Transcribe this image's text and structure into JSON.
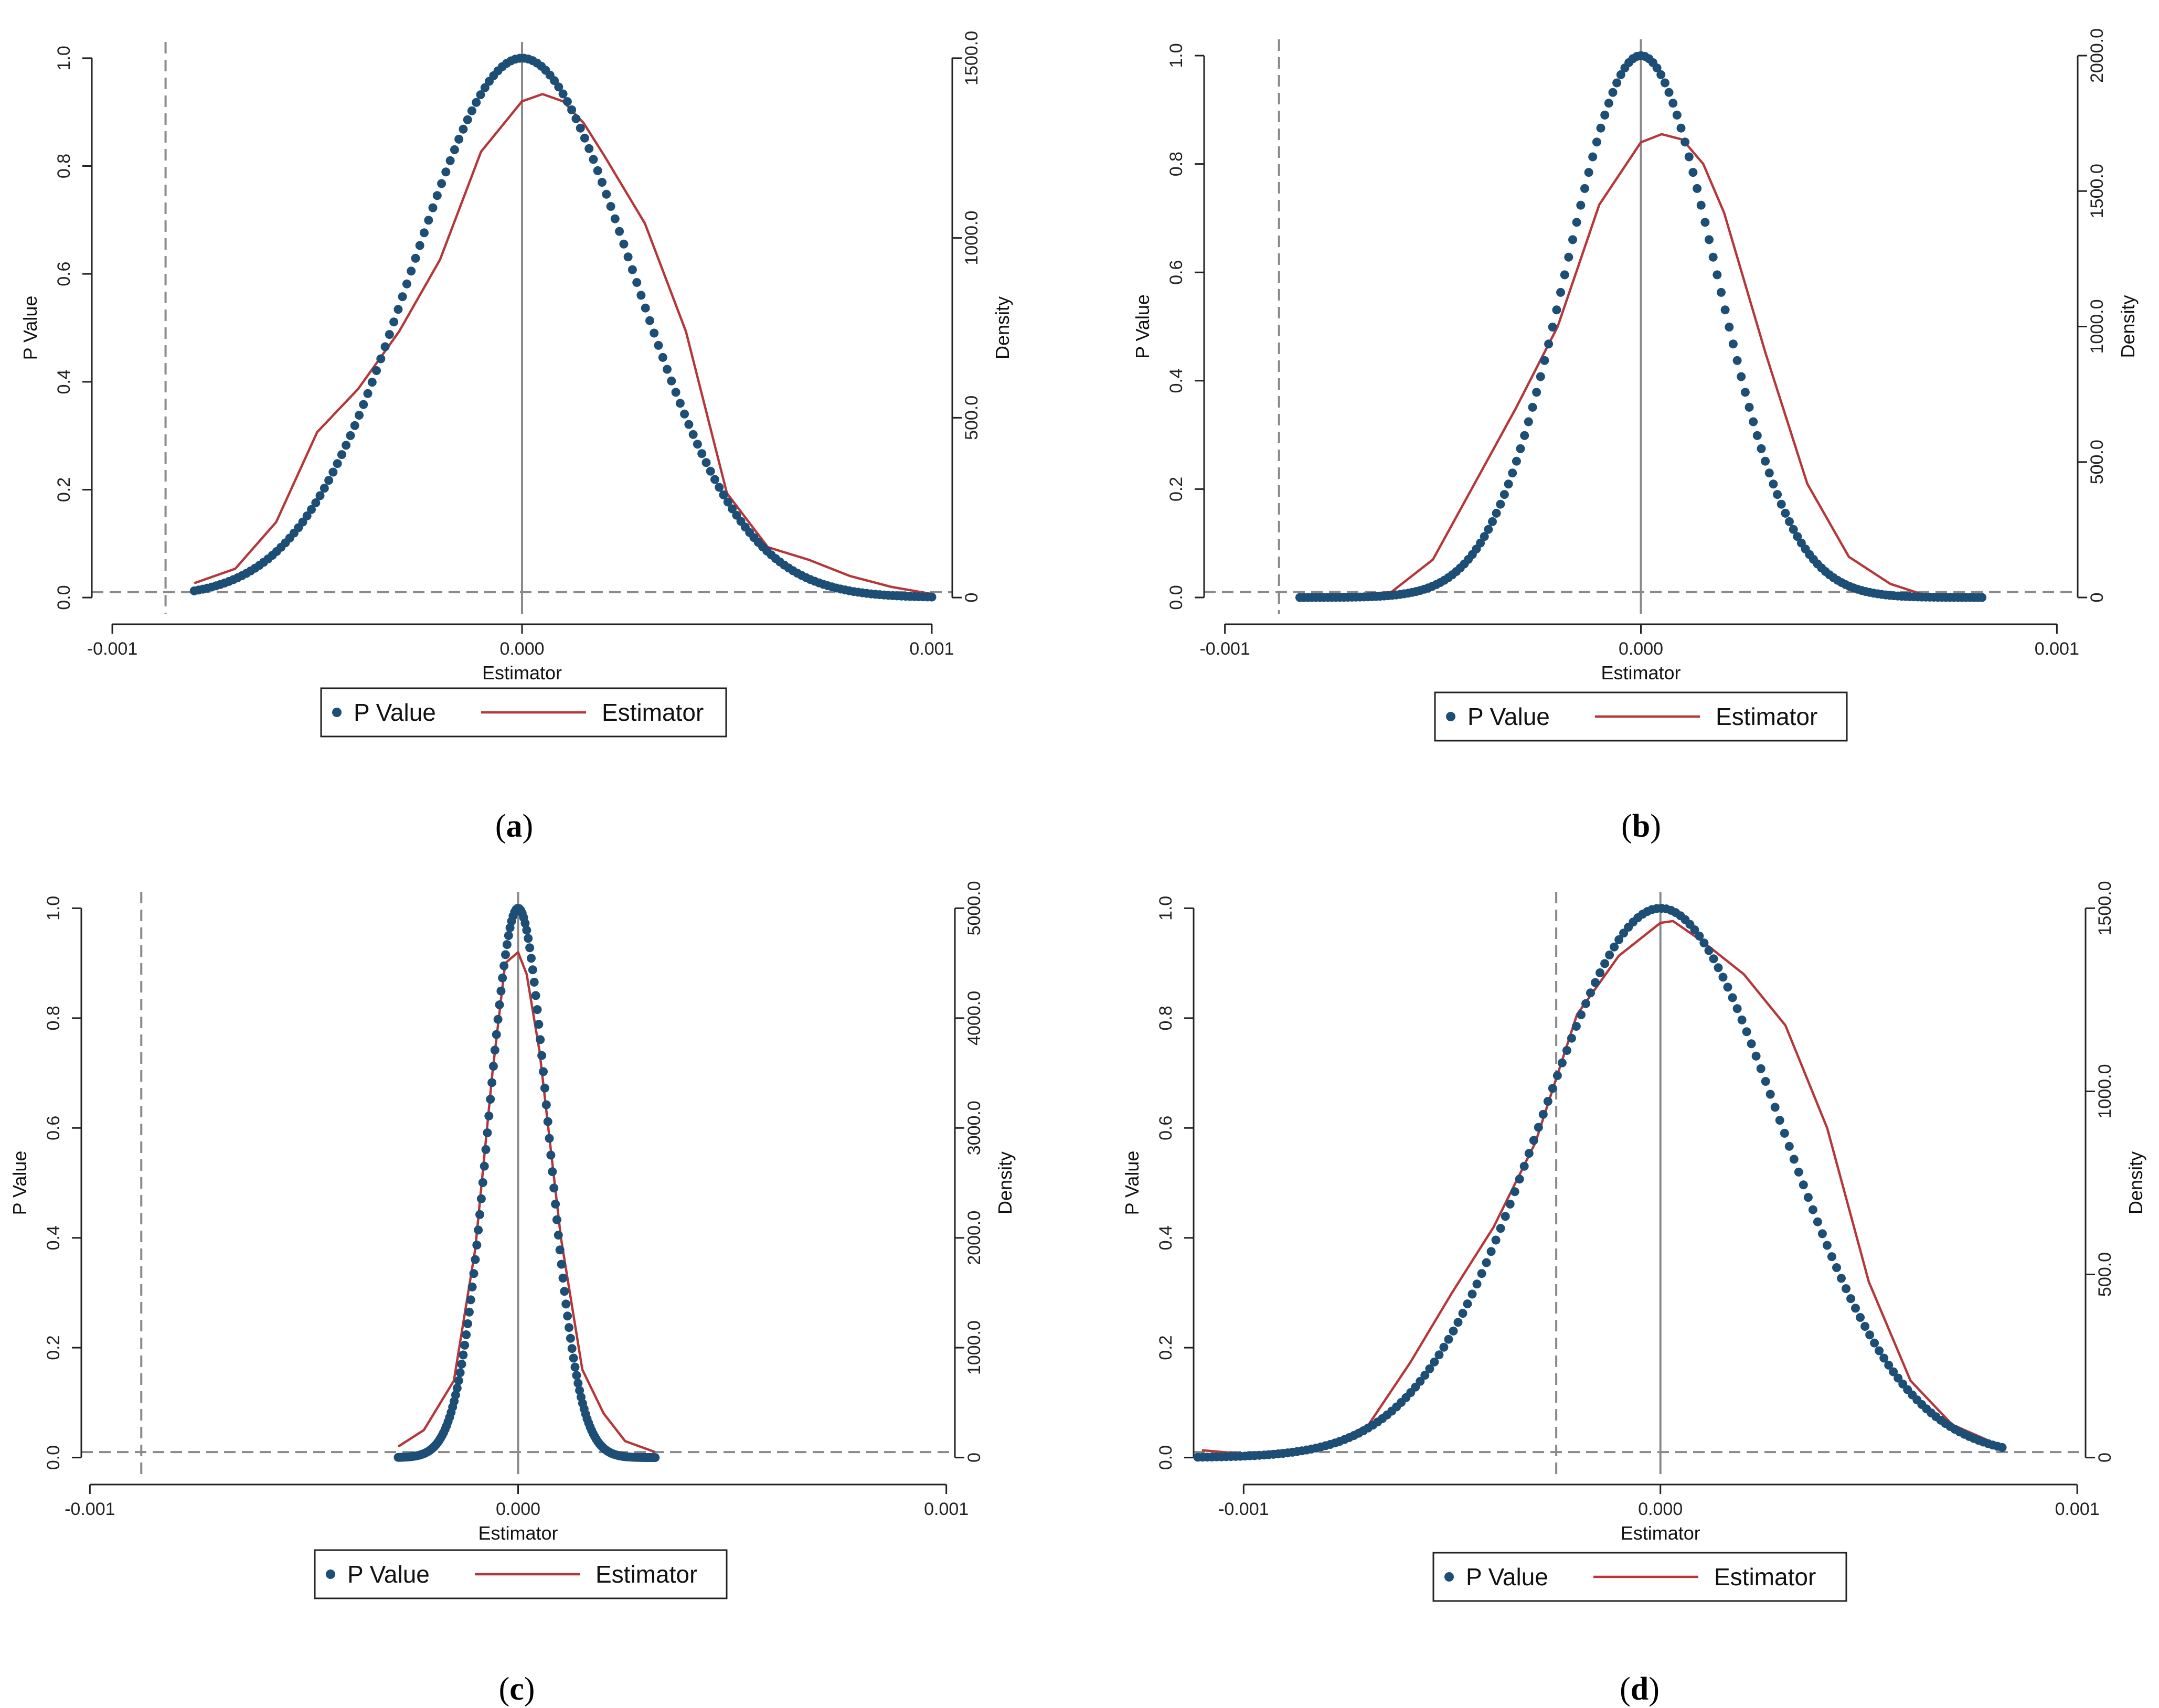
{
  "colors": {
    "pvalue_dot": "#1d4e75",
    "estimator_line": "#b5373a",
    "axis": "#222222",
    "ref_dashed": "#8a8a8a",
    "zero_line": "#8a8a8a"
  },
  "chart_data": [
    {
      "id": "a",
      "type": "scatter+line",
      "panel_label": "a",
      "xlabel": "Estimator",
      "ylabel_left": "P Value",
      "ylabel_right": "Density",
      "xlim": [
        -0.00105,
        0.00105
      ],
      "x_ticks": [
        "-0.001",
        "0.000",
        "0.001"
      ],
      "x_tick_values": [
        -0.001,
        0.0,
        0.001
      ],
      "ylim_left": [
        -0.03,
        1.03
      ],
      "y_ticks_left": [
        "0.0",
        "0.2",
        "0.4",
        "0.6",
        "0.8",
        "1.0"
      ],
      "y_tick_values_left": [
        0.0,
        0.2,
        0.4,
        0.6,
        0.8,
        1.0
      ],
      "ylim_right": [
        -45,
        1545
      ],
      "y_ticks_right": [
        "0",
        "500.0",
        "1000.0",
        "1500.0"
      ],
      "y_tick_values_right": [
        0,
        500,
        1000,
        1500
      ],
      "ref_vline": -0.00087,
      "ref_hline": 0.01,
      "pvalue_spread": 0.00027,
      "pvalue_xrange": [
        -0.0008,
        0.001
      ],
      "legend": [
        "P Value",
        "Estimator"
      ],
      "density_points": [
        [
          -0.0008,
          40
        ],
        [
          -0.0007,
          80
        ],
        [
          -0.0006,
          210
        ],
        [
          -0.0005,
          460
        ],
        [
          -0.0004,
          580
        ],
        [
          -0.0003,
          740
        ],
        [
          -0.0002,
          940
        ],
        [
          -0.0001,
          1240
        ],
        [
          0.0,
          1380
        ],
        [
          5e-05,
          1400
        ],
        [
          0.0001,
          1380
        ],
        [
          0.00015,
          1320
        ],
        [
          0.0002,
          1230
        ],
        [
          0.0003,
          1040
        ],
        [
          0.0004,
          740
        ],
        [
          0.0005,
          290
        ],
        [
          0.0006,
          140
        ],
        [
          0.0007,
          105
        ],
        [
          0.0008,
          60
        ],
        [
          0.0009,
          30
        ],
        [
          0.001,
          10
        ]
      ]
    },
    {
      "id": "b",
      "type": "scatter+line",
      "panel_label": "b",
      "xlabel": "Estimator",
      "ylabel_left": "P Value",
      "ylabel_right": "Density",
      "xlim": [
        -0.00105,
        0.00105
      ],
      "x_ticks": [
        "-0.001",
        "0.000",
        "0.001"
      ],
      "x_tick_values": [
        -0.001,
        0.0,
        0.001
      ],
      "ylim_left": [
        -0.03,
        1.03
      ],
      "y_ticks_left": [
        "0.0",
        "0.2",
        "0.4",
        "0.6",
        "0.8",
        "1.0"
      ],
      "y_tick_values_left": [
        0.0,
        0.2,
        0.4,
        0.6,
        0.8,
        1.0
      ],
      "ylim_right": [
        -60,
        2060
      ],
      "y_ticks_right": [
        "0",
        "500.0",
        "1000.0",
        "1500.0",
        "2000.0"
      ],
      "y_tick_values_right": [
        0,
        500,
        1000,
        1500,
        2000
      ],
      "ref_vline": -0.00087,
      "ref_hline": 0.01,
      "pvalue_spread": 0.00018,
      "pvalue_xrange": [
        -0.00082,
        0.00082
      ],
      "legend": [
        "P Value",
        "Estimator"
      ],
      "density_points": [
        [
          -0.0008,
          0
        ],
        [
          -0.0006,
          20
        ],
        [
          -0.0005,
          140
        ],
        [
          -0.0004,
          420
        ],
        [
          -0.0003,
          700
        ],
        [
          -0.0002,
          1000
        ],
        [
          -0.0001,
          1450
        ],
        [
          0.0,
          1680
        ],
        [
          5e-05,
          1710
        ],
        [
          0.0001,
          1690
        ],
        [
          0.00015,
          1600
        ],
        [
          0.0002,
          1420
        ],
        [
          0.0003,
          900
        ],
        [
          0.0004,
          420
        ],
        [
          0.0005,
          150
        ],
        [
          0.0006,
          50
        ],
        [
          0.0007,
          0
        ],
        [
          0.0008,
          5
        ]
      ]
    },
    {
      "id": "c",
      "type": "scatter+line",
      "panel_label": "c",
      "xlabel": "Estimator",
      "ylabel_left": "P Value",
      "ylabel_right": "Density",
      "xlim": [
        -0.00102,
        0.00102
      ],
      "x_ticks": [
        "-0.001",
        "0.000",
        "0.001"
      ],
      "x_tick_values": [
        -0.001,
        0.0,
        0.001
      ],
      "ylim_left": [
        -0.03,
        1.03
      ],
      "y_ticks_left": [
        "0.0",
        "0.2",
        "0.4",
        "0.6",
        "0.8",
        "1.0"
      ],
      "y_tick_values_left": [
        0.0,
        0.2,
        0.4,
        0.6,
        0.8,
        1.0
      ],
      "ylim_right": [
        -150,
        5150
      ],
      "y_ticks_right": [
        "0",
        "1000.0",
        "2000.0",
        "3000.0",
        "4000.0",
        "5000.0"
      ],
      "y_tick_values_right": [
        0,
        1000,
        2000,
        3000,
        4000,
        5000
      ],
      "ref_vline": -0.00088,
      "ref_hline": 0.01,
      "pvalue_spread": 7e-05,
      "pvalue_xrange": [
        -0.00028,
        0.00032
      ],
      "legend": [
        "P Value",
        "Estimator"
      ],
      "density_points": [
        [
          -0.00028,
          100
        ],
        [
          -0.00022,
          250
        ],
        [
          -0.00015,
          700
        ],
        [
          -0.0001,
          1900
        ],
        [
          -6e-05,
          3500
        ],
        [
          -3e-05,
          4500
        ],
        [
          0.0,
          4600
        ],
        [
          2e-05,
          4400
        ],
        [
          5e-05,
          3700
        ],
        [
          0.0001,
          2000
        ],
        [
          0.00015,
          800
        ],
        [
          0.0002,
          400
        ],
        [
          0.00025,
          150
        ],
        [
          0.00032,
          50
        ]
      ]
    },
    {
      "id": "d",
      "type": "scatter+line",
      "panel_label": "d",
      "xlabel": "Estimator",
      "ylabel_left": "P Value",
      "ylabel_right": "Density",
      "xlim": [
        -0.00112,
        0.00102
      ],
      "x_ticks": [
        "-0.001",
        "0.000",
        "0.001"
      ],
      "x_tick_values": [
        -0.001,
        0.0,
        0.001
      ],
      "ylim_left": [
        -0.03,
        1.03
      ],
      "y_ticks_left": [
        "0.0",
        "0.2",
        "0.4",
        "0.6",
        "0.8",
        "1.0"
      ],
      "y_tick_values_left": [
        0.0,
        0.2,
        0.4,
        0.6,
        0.8,
        1.0
      ],
      "ylim_right": [
        -45,
        1545
      ],
      "y_ticks_right": [
        "0",
        "500.0",
        "1000.0",
        "1500.0"
      ],
      "y_tick_values_right": [
        0,
        500,
        1000,
        1500
      ],
      "ref_vline": -0.00025,
      "ref_hline": 0.01,
      "pvalue_spread": 0.00029,
      "pvalue_xrange": [
        -0.00111,
        0.00082
      ],
      "legend": [
        "P Value",
        "Estimator"
      ],
      "density_points": [
        [
          -0.0011,
          20
        ],
        [
          -0.001,
          10
        ],
        [
          -0.0008,
          30
        ],
        [
          -0.0007,
          90
        ],
        [
          -0.0006,
          260
        ],
        [
          -0.0005,
          450
        ],
        [
          -0.0004,
          630
        ],
        [
          -0.0003,
          860
        ],
        [
          -0.0002,
          1210
        ],
        [
          -0.0001,
          1370
        ],
        [
          0.0,
          1460
        ],
        [
          3e-05,
          1465
        ],
        [
          0.0001,
          1410
        ],
        [
          0.0002,
          1320
        ],
        [
          0.0003,
          1180
        ],
        [
          0.0004,
          900
        ],
        [
          0.0005,
          480
        ],
        [
          0.0006,
          210
        ],
        [
          0.0007,
          90
        ],
        [
          0.0008,
          40
        ]
      ]
    }
  ]
}
